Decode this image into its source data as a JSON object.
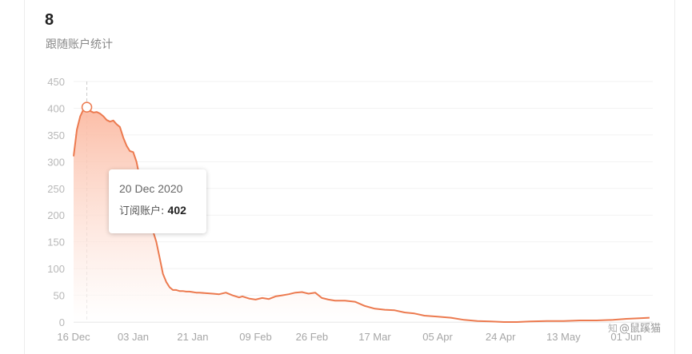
{
  "header": {
    "value": "8",
    "subtitle": "跟随账户统计"
  },
  "tooltip": {
    "date": "20 Dec 2020",
    "label": "订阅账户:",
    "value": "402"
  },
  "watermark": {
    "icon": "zhihu-icon",
    "text": "@鼠蹊猫"
  },
  "colors": {
    "line": "#ec7a4f",
    "area_top": "#fbb9a1",
    "area_bottom": "#ffffff",
    "grid": "#f2f2f2",
    "crosshair": "#cccccc"
  },
  "chart_data": {
    "type": "area",
    "x_axis_type": "date",
    "title": "",
    "xlabel": "",
    "ylabel": "",
    "ylim": [
      0,
      450
    ],
    "xlim": [
      "2020-12-16",
      "2021-06-09"
    ],
    "yticks": [
      0,
      50,
      100,
      150,
      200,
      250,
      300,
      350,
      400,
      450
    ],
    "xticks": [
      {
        "date": "2020-12-16",
        "label": "16 Dec"
      },
      {
        "date": "2021-01-03",
        "label": "03 Jan"
      },
      {
        "date": "2021-01-21",
        "label": "21 Jan"
      },
      {
        "date": "2021-02-09",
        "label": "09 Feb"
      },
      {
        "date": "2021-02-26",
        "label": "26 Feb"
      },
      {
        "date": "2021-03-17",
        "label": "17 Mar"
      },
      {
        "date": "2021-04-05",
        "label": "05 Apr"
      },
      {
        "date": "2021-04-24",
        "label": "24 Apr"
      },
      {
        "date": "2021-05-13",
        "label": "13 May"
      },
      {
        "date": "2021-06-01",
        "label": "01 Jun"
      }
    ],
    "grid": true,
    "legend": "none",
    "highlight": {
      "date": "2020-12-20",
      "value": 402
    },
    "series": [
      {
        "dates": [
          "2020-12-16",
          "2020-12-17",
          "2020-12-18",
          "2020-12-19",
          "2020-12-20",
          "2020-12-21",
          "2020-12-22",
          "2020-12-23",
          "2020-12-24",
          "2020-12-25",
          "2020-12-26",
          "2020-12-27",
          "2020-12-28",
          "2020-12-29",
          "2020-12-30",
          "2020-12-31",
          "2021-01-01",
          "2021-01-02",
          "2021-01-03",
          "2021-01-04",
          "2021-01-05",
          "2021-01-06",
          "2021-01-07",
          "2021-01-08",
          "2021-01-09",
          "2021-01-10",
          "2021-01-11",
          "2021-01-12",
          "2021-01-13",
          "2021-01-14",
          "2021-01-15",
          "2021-01-16",
          "2021-01-17",
          "2021-01-18",
          "2021-01-19",
          "2021-01-20",
          "2021-01-21",
          "2021-01-22",
          "2021-01-23",
          "2021-01-25",
          "2021-01-27",
          "2021-01-29",
          "2021-01-31",
          "2021-02-02",
          "2021-02-04",
          "2021-02-05",
          "2021-02-07",
          "2021-02-09",
          "2021-02-11",
          "2021-02-13",
          "2021-02-15",
          "2021-02-17",
          "2021-02-19",
          "2021-02-21",
          "2021-02-23",
          "2021-02-25",
          "2021-02-27",
          "2021-03-01",
          "2021-03-03",
          "2021-03-05",
          "2021-03-08",
          "2021-03-11",
          "2021-03-14",
          "2021-03-17",
          "2021-03-20",
          "2021-03-23",
          "2021-03-26",
          "2021-03-29",
          "2021-04-01",
          "2021-04-05",
          "2021-04-09",
          "2021-04-13",
          "2021-04-17",
          "2021-04-21",
          "2021-04-25",
          "2021-04-29",
          "2021-05-03",
          "2021-05-08",
          "2021-05-13",
          "2021-05-18",
          "2021-05-23",
          "2021-05-28",
          "2021-06-01",
          "2021-06-05",
          "2021-06-08"
        ],
        "values": [
          310,
          360,
          385,
          398,
          402,
          395,
          392,
          393,
          390,
          385,
          378,
          375,
          377,
          370,
          365,
          345,
          330,
          320,
          318,
          300,
          270,
          250,
          215,
          185,
          170,
          150,
          120,
          90,
          75,
          65,
          60,
          60,
          58,
          58,
          57,
          57,
          56,
          55,
          55,
          54,
          53,
          52,
          55,
          50,
          46,
          48,
          44,
          42,
          45,
          43,
          48,
          50,
          52,
          55,
          56,
          53,
          55,
          45,
          42,
          40,
          40,
          38,
          30,
          25,
          23,
          22,
          18,
          16,
          12,
          10,
          8,
          4,
          2,
          1,
          0,
          0,
          1,
          2,
          2,
          3,
          3,
          4,
          6,
          7,
          8
        ]
      }
    ]
  }
}
